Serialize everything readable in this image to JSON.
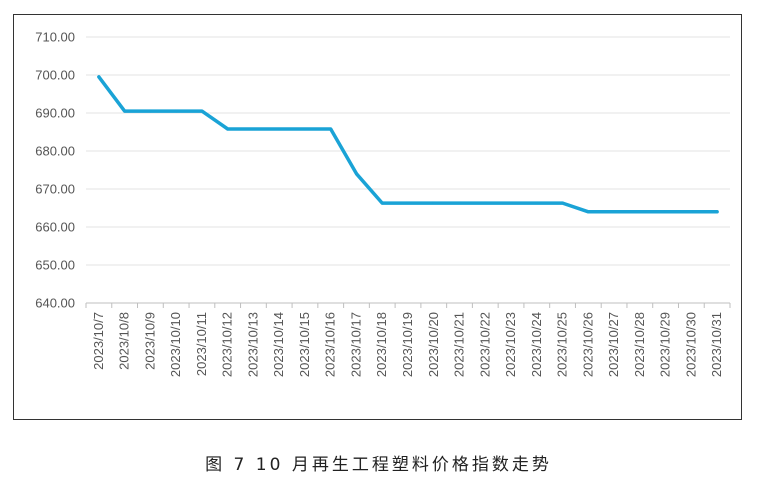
{
  "chart_data": {
    "type": "line",
    "title": "",
    "xlabel": "",
    "ylabel": "",
    "categories": [
      "2023/10/7",
      "2023/10/8",
      "2023/10/9",
      "2023/10/10",
      "2023/10/11",
      "2023/10/12",
      "2023/10/13",
      "2023/10/14",
      "2023/10/15",
      "2023/10/16",
      "2023/10/17",
      "2023/10/18",
      "2023/10/19",
      "2023/10/20",
      "2023/10/21",
      "2023/10/22",
      "2023/10/23",
      "2023/10/24",
      "2023/10/25",
      "2023/10/26",
      "2023/10/27",
      "2023/10/28",
      "2023/10/29",
      "2023/10/30",
      "2023/10/31"
    ],
    "series": [
      {
        "values": [
          699.5,
          690.5,
          690.5,
          690.5,
          690.5,
          685.8,
          685.8,
          685.8,
          685.8,
          685.8,
          674.0,
          666.3,
          666.3,
          666.3,
          666.3,
          666.3,
          666.3,
          666.3,
          666.3,
          664.0,
          664.0,
          664.0,
          664.0,
          664.0,
          664.0
        ]
      }
    ],
    "ylim": [
      640,
      710
    ],
    "yticks": [
      "640.00",
      "650.00",
      "660.00",
      "670.00",
      "680.00",
      "690.00",
      "700.00",
      "710.00"
    ],
    "grid": true,
    "legend": "none",
    "line_color": "#1aa3d6"
  },
  "caption": "图 7  10 月再生工程塑料价格指数走势"
}
